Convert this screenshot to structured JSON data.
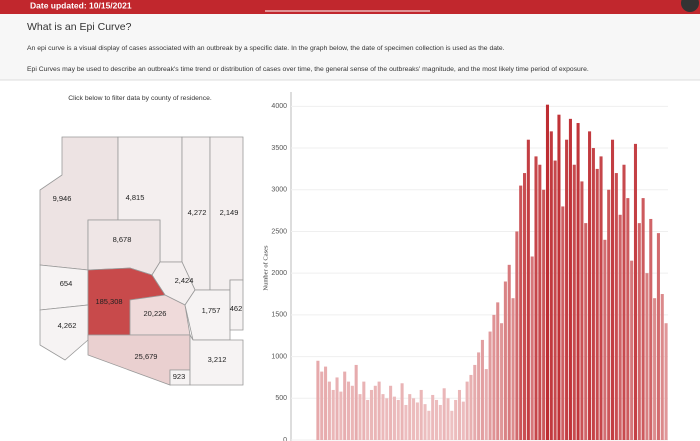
{
  "header": {
    "date_updated": "Date updated: 10/15/2021"
  },
  "intro": {
    "title": "What is an Epi Curve?",
    "paragraphs": [
      "An epi curve is a visual display of cases associated with an outbreak by a specific date.  In  the graph below, the date of specimen collection is used as the date.",
      "Epi Curves may be used to describe an outbreak's time trend or distribution of cases over time, the general sense of the outbreaks' magnitude, and the most likely time period of exposure."
    ]
  },
  "map": {
    "instruction": "Click below to filter data by county of residence.",
    "counties": [
      "9,946",
      "4,815",
      "4,272",
      "2,149",
      "8,678",
      "2,424",
      "654",
      "185,308",
      "20,226",
      "1,757",
      "462",
      "4,262",
      "25,679",
      "923",
      "3,212"
    ]
  },
  "chart_data": {
    "type": "bar",
    "y_label": "Number of Cases",
    "values": [
      950,
      820,
      880,
      700,
      600,
      750,
      580,
      820,
      700,
      650,
      900,
      550,
      700,
      480,
      600,
      650,
      700,
      550,
      500,
      650,
      520,
      480,
      680,
      420,
      550,
      500,
      450,
      600,
      430,
      350,
      540,
      480,
      420,
      620,
      500,
      350,
      480,
      600,
      460,
      700,
      780,
      900,
      1050,
      1200,
      850,
      1300,
      1500,
      1650,
      1400,
      1900,
      2100,
      1700,
      2500,
      3050,
      3200,
      3600,
      2200,
      3400,
      3300,
      3000,
      4020,
      3700,
      3350,
      3900,
      2800,
      3600,
      3850,
      3300,
      3800,
      3100,
      2600,
      3700,
      3500,
      3250,
      3400,
      2400,
      3000,
      3600,
      3200,
      2700,
      3300,
      2900,
      2150,
      3550,
      2600,
      2900,
      2000,
      2650,
      1700,
      2480,
      1750,
      1400
    ],
    "color_low": "#f2cfd0",
    "color_high": "#bd2a2f",
    "ylim": [
      0,
      4100
    ],
    "yticks": [
      0,
      500,
      1000,
      1500,
      2000,
      2500,
      3000,
      3500,
      4000
    ],
    "grid": true
  }
}
